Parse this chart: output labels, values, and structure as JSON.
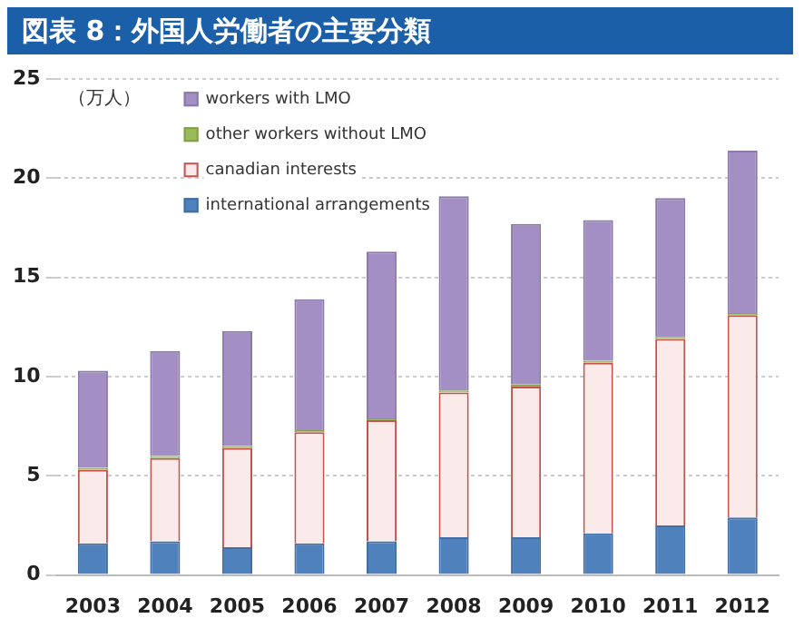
{
  "chart_data": {
    "type": "bar",
    "title": "図表 8：外国人労働者の主要分類",
    "ylabel": "（万人）",
    "categories": [
      "2003",
      "2004",
      "2005",
      "2006",
      "2007",
      "2008",
      "2009",
      "2010",
      "2011",
      "2012"
    ],
    "stacked": true,
    "legend": "top left",
    "grid": "y",
    "ylim": [
      0,
      25
    ],
    "yticks": [
      0,
      5,
      10,
      15,
      20,
      25
    ],
    "series": [
      {
        "name": "international arrangements",
        "color": "#4f81bd",
        "values": [
          1.6,
          1.7,
          1.4,
          1.6,
          1.7,
          1.9,
          1.9,
          2.1,
          2.5,
          2.9
        ]
      },
      {
        "name": "canadian interests",
        "color": "#fbeaea",
        "values": [
          3.7,
          4.2,
          5.0,
          5.6,
          6.1,
          7.3,
          7.6,
          8.6,
          9.4,
          10.2
        ]
      },
      {
        "name": "other workers without LMO",
        "color": "#9bbb59",
        "values": [
          0.1,
          0.1,
          0.1,
          0.1,
          0.1,
          0.1,
          0.1,
          0.1,
          0.1,
          0.1
        ]
      },
      {
        "name": "workers with LMO",
        "color": "#a48fc4",
        "values": [
          4.9,
          5.3,
          5.8,
          6.6,
          8.4,
          9.8,
          8.1,
          7.1,
          7.0,
          8.2
        ]
      }
    ]
  }
}
